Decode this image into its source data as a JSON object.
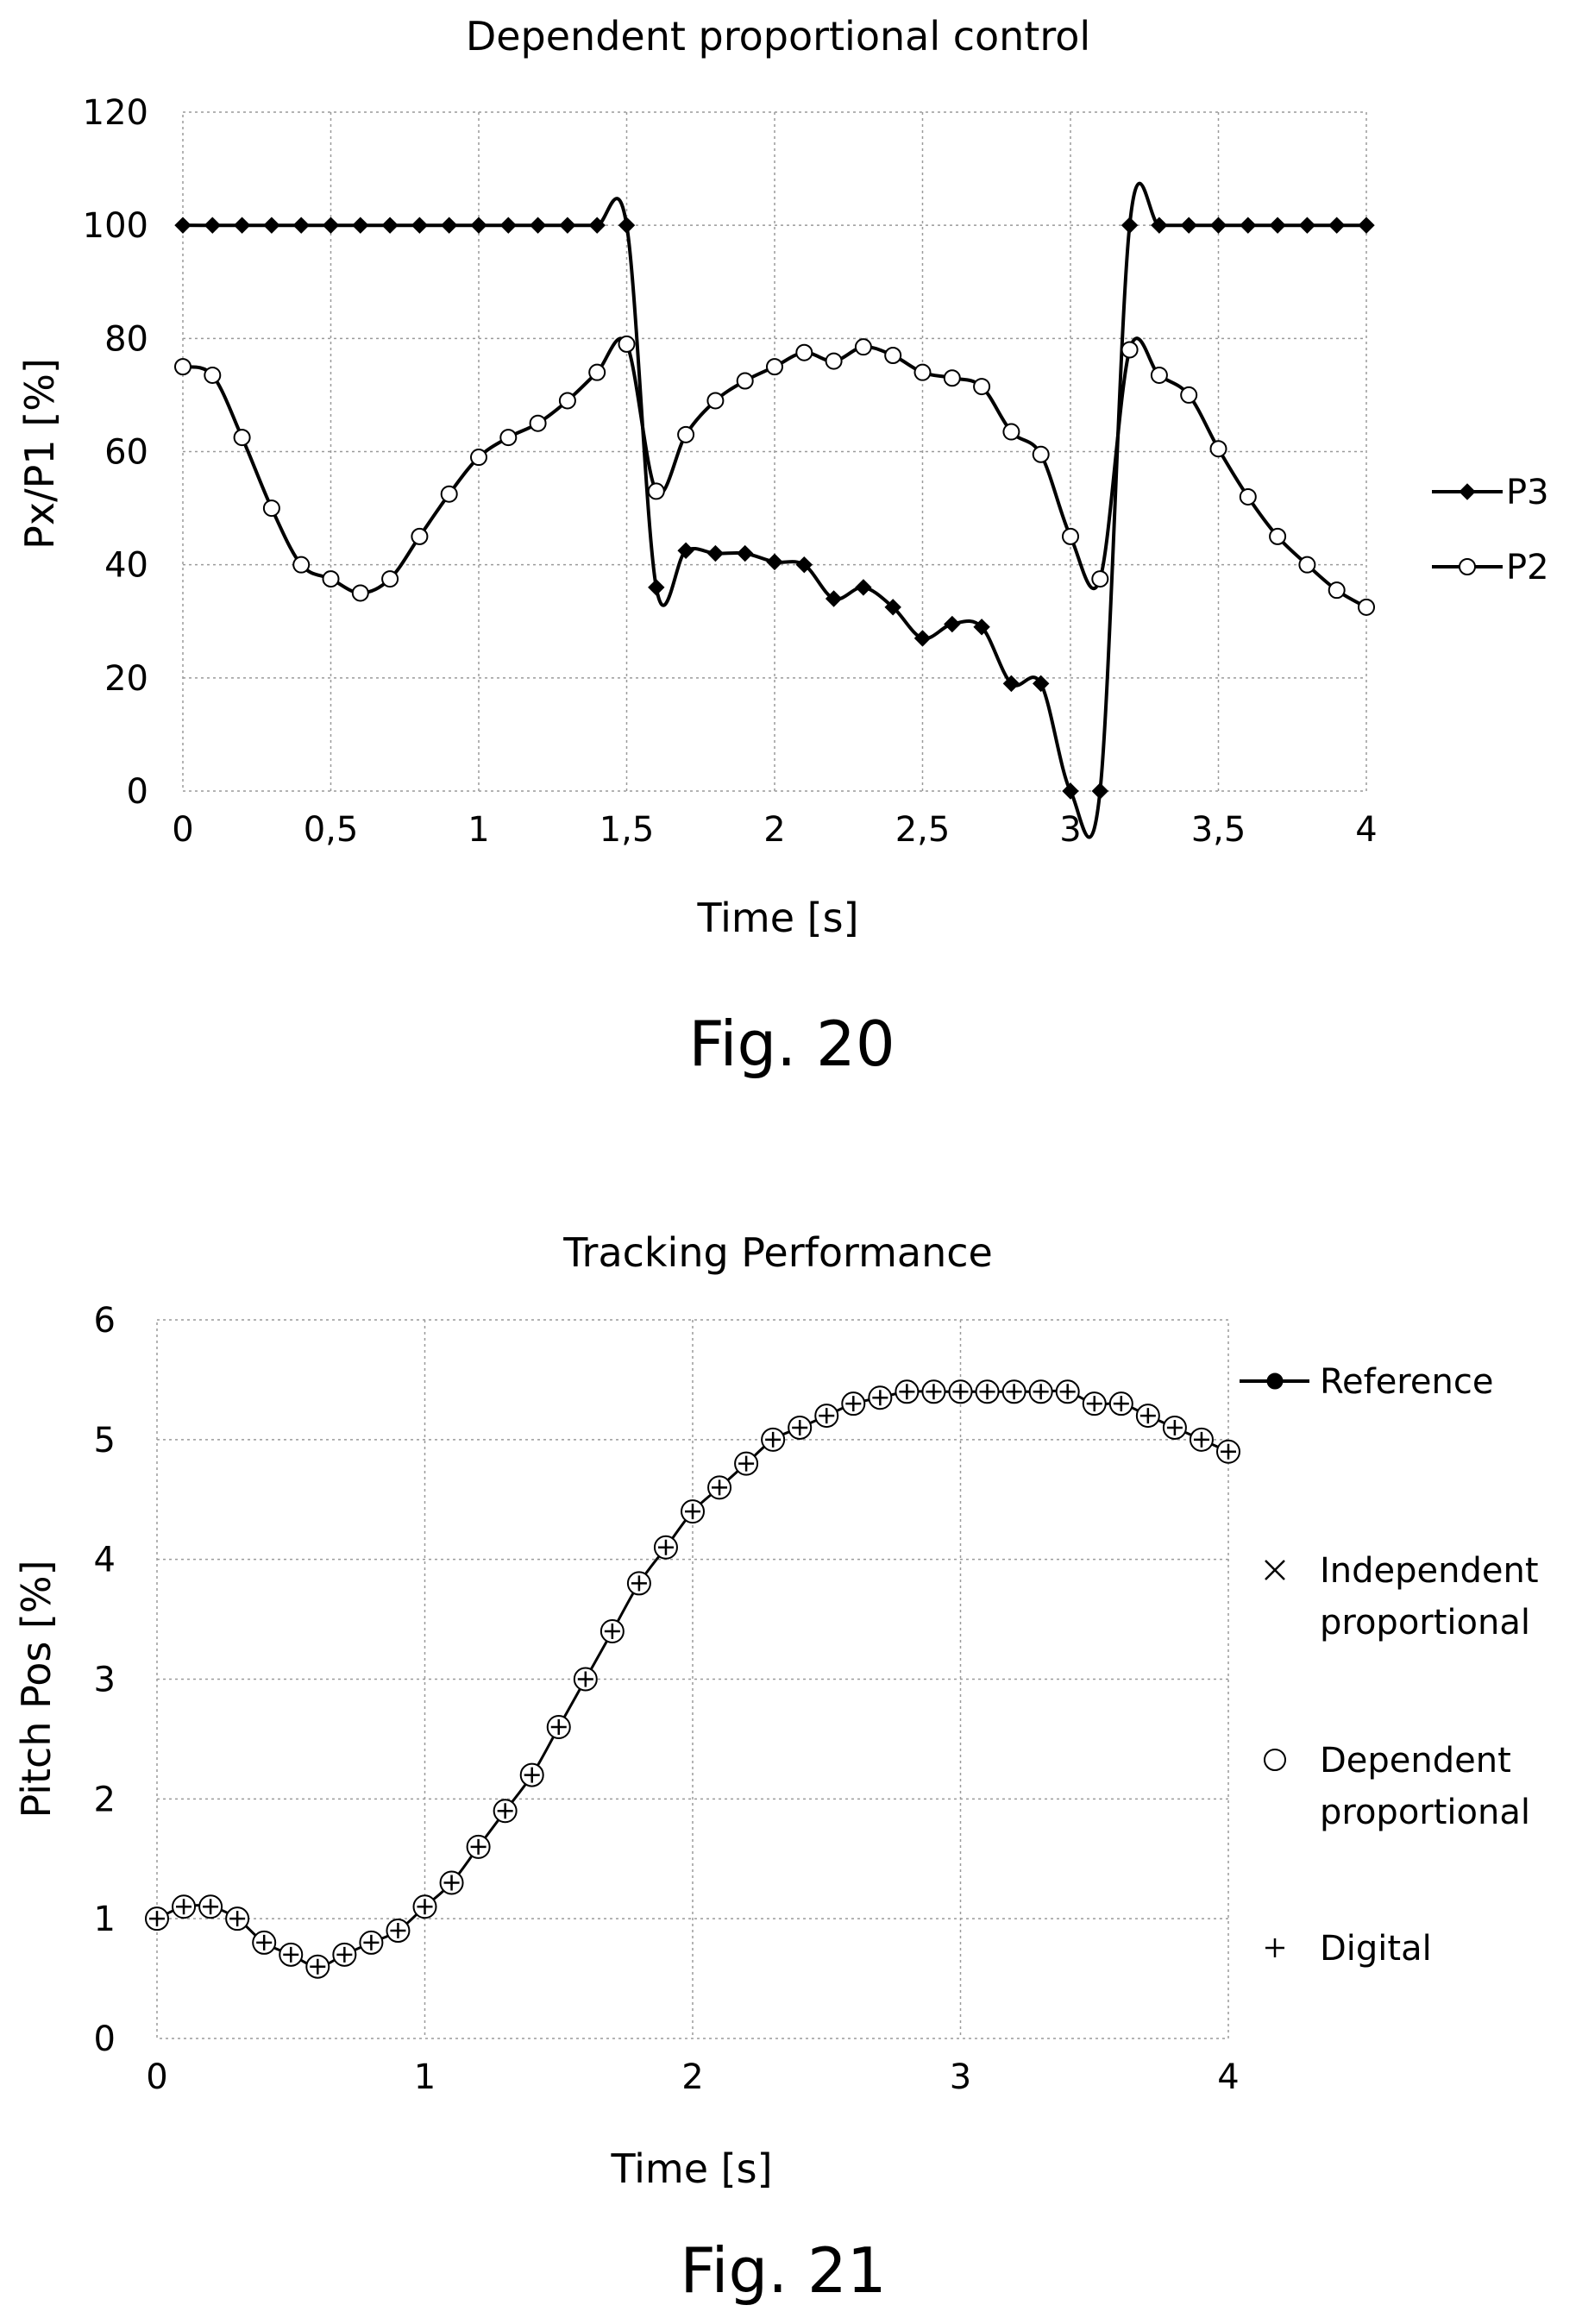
{
  "fig20": {
    "caption": "Fig. 20",
    "chart_data": {
      "type": "line",
      "title": "Dependent proportional control",
      "xlabel": "Time [s]",
      "ylabel": "Px/P1 [%]",
      "xlim": [
        0,
        4
      ],
      "ylim": [
        0,
        120
      ],
      "xticks": [
        "0",
        "0,5",
        "1",
        "1,5",
        "2",
        "2,5",
        "3",
        "3,5",
        "4"
      ],
      "yticks": [
        "0",
        "20",
        "40",
        "60",
        "80",
        "100",
        "120"
      ],
      "grid": true,
      "legend_position": "right",
      "x": [
        0,
        0.1,
        0.2,
        0.3,
        0.4,
        0.5,
        0.6,
        0.7,
        0.8,
        0.9,
        1.0,
        1.1,
        1.2,
        1.3,
        1.4,
        1.5,
        1.6,
        1.7,
        1.8,
        1.9,
        2.0,
        2.1,
        2.2,
        2.3,
        2.4,
        2.5,
        2.6,
        2.7,
        2.8,
        2.9,
        3.0,
        3.1,
        3.2,
        3.3,
        3.4,
        3.5,
        3.6,
        3.7,
        3.8,
        3.9,
        4.0
      ],
      "series": [
        {
          "name": "P3",
          "marker": "filled-diamond",
          "values": [
            100,
            100,
            100,
            100,
            100,
            100,
            100,
            100,
            100,
            100,
            100,
            100,
            100,
            100,
            100,
            100,
            36,
            42.5,
            42,
            42,
            40.5,
            40,
            34,
            36,
            32.5,
            27,
            29.5,
            29,
            19,
            19,
            0,
            0,
            100,
            100,
            100,
            100,
            100,
            100,
            100,
            100,
            100
          ]
        },
        {
          "name": "P2",
          "marker": "open-circle",
          "values": [
            75,
            73.5,
            62.5,
            50,
            40,
            37.5,
            35,
            37.5,
            45,
            52.5,
            59,
            62.5,
            65,
            69,
            74,
            79,
            53,
            63,
            69,
            72.5,
            75,
            77.5,
            76,
            78.5,
            77,
            74,
            73,
            71.5,
            63.5,
            59.5,
            45,
            37.5,
            78,
            73.5,
            70,
            60.5,
            52,
            45,
            40,
            35.5,
            32.5
          ]
        }
      ]
    }
  },
  "fig21": {
    "caption": "Fig. 21",
    "chart_data": {
      "type": "line",
      "title": "Tracking Performance",
      "xlabel": "Time [s]",
      "ylabel": "Pitch Pos [%]",
      "xlim": [
        0,
        4
      ],
      "ylim": [
        0,
        6
      ],
      "xticks": [
        "0",
        "1",
        "2",
        "3",
        "4"
      ],
      "yticks": [
        "0",
        "1",
        "2",
        "3",
        "4",
        "5",
        "6"
      ],
      "grid": true,
      "legend_position": "right",
      "x": [
        0,
        0.1,
        0.2,
        0.3,
        0.4,
        0.5,
        0.6,
        0.7,
        0.8,
        0.9,
        1.0,
        1.1,
        1.2,
        1.3,
        1.4,
        1.5,
        1.6,
        1.7,
        1.8,
        1.9,
        2.0,
        2.1,
        2.2,
        2.3,
        2.4,
        2.5,
        2.6,
        2.7,
        2.8,
        2.9,
        3.0,
        3.1,
        3.2,
        3.3,
        3.4,
        3.5,
        3.6,
        3.7,
        3.8,
        3.9,
        4.0
      ],
      "series": [
        {
          "name": "Reference",
          "marker": "filled-circle",
          "legend_lines": [
            "Reference"
          ],
          "values": [
            1.0,
            1.1,
            1.1,
            1.0,
            0.8,
            0.7,
            0.6,
            0.7,
            0.8,
            0.9,
            1.1,
            1.3,
            1.6,
            1.9,
            2.2,
            2.6,
            3.0,
            3.4,
            3.8,
            4.1,
            4.4,
            4.6,
            4.8,
            5.0,
            5.1,
            5.2,
            5.3,
            5.35,
            5.4,
            5.4,
            5.4,
            5.4,
            5.4,
            5.4,
            5.4,
            5.3,
            5.3,
            5.2,
            5.1,
            5.0,
            4.9
          ]
        },
        {
          "name": "Independent proportional",
          "marker": "x",
          "legend_lines": [
            "Independent",
            "proportional"
          ],
          "values": [
            1.0,
            1.1,
            1.1,
            1.0,
            0.8,
            0.7,
            0.6,
            0.7,
            0.8,
            0.9,
            1.1,
            1.3,
            1.6,
            1.9,
            2.2,
            2.6,
            3.0,
            3.4,
            3.8,
            4.1,
            4.4,
            4.6,
            4.8,
            5.0,
            5.1,
            5.2,
            5.3,
            5.35,
            5.4,
            5.4,
            5.4,
            5.4,
            5.4,
            5.4,
            5.4,
            5.3,
            5.3,
            5.2,
            5.1,
            5.0,
            4.9
          ]
        },
        {
          "name": "Dependent proportional",
          "marker": "open-circle",
          "legend_lines": [
            "Dependent",
            "proportional"
          ],
          "values": [
            1.0,
            1.1,
            1.1,
            1.0,
            0.8,
            0.7,
            0.6,
            0.7,
            0.8,
            0.9,
            1.1,
            1.3,
            1.6,
            1.9,
            2.2,
            2.6,
            3.0,
            3.4,
            3.8,
            4.1,
            4.4,
            4.6,
            4.8,
            5.0,
            5.1,
            5.2,
            5.3,
            5.35,
            5.4,
            5.4,
            5.4,
            5.4,
            5.4,
            5.4,
            5.4,
            5.3,
            5.3,
            5.2,
            5.1,
            5.0,
            4.9
          ]
        },
        {
          "name": "Digital",
          "marker": "plus",
          "legend_lines": [
            "Digital"
          ],
          "values": [
            1.0,
            1.1,
            1.1,
            1.0,
            0.8,
            0.7,
            0.6,
            0.7,
            0.8,
            0.9,
            1.1,
            1.3,
            1.6,
            1.9,
            2.2,
            2.6,
            3.0,
            3.4,
            3.8,
            4.1,
            4.4,
            4.6,
            4.8,
            5.0,
            5.1,
            5.2,
            5.3,
            5.35,
            5.4,
            5.4,
            5.4,
            5.4,
            5.4,
            5.4,
            5.4,
            5.3,
            5.3,
            5.2,
            5.1,
            5.0,
            4.9
          ]
        }
      ]
    }
  }
}
